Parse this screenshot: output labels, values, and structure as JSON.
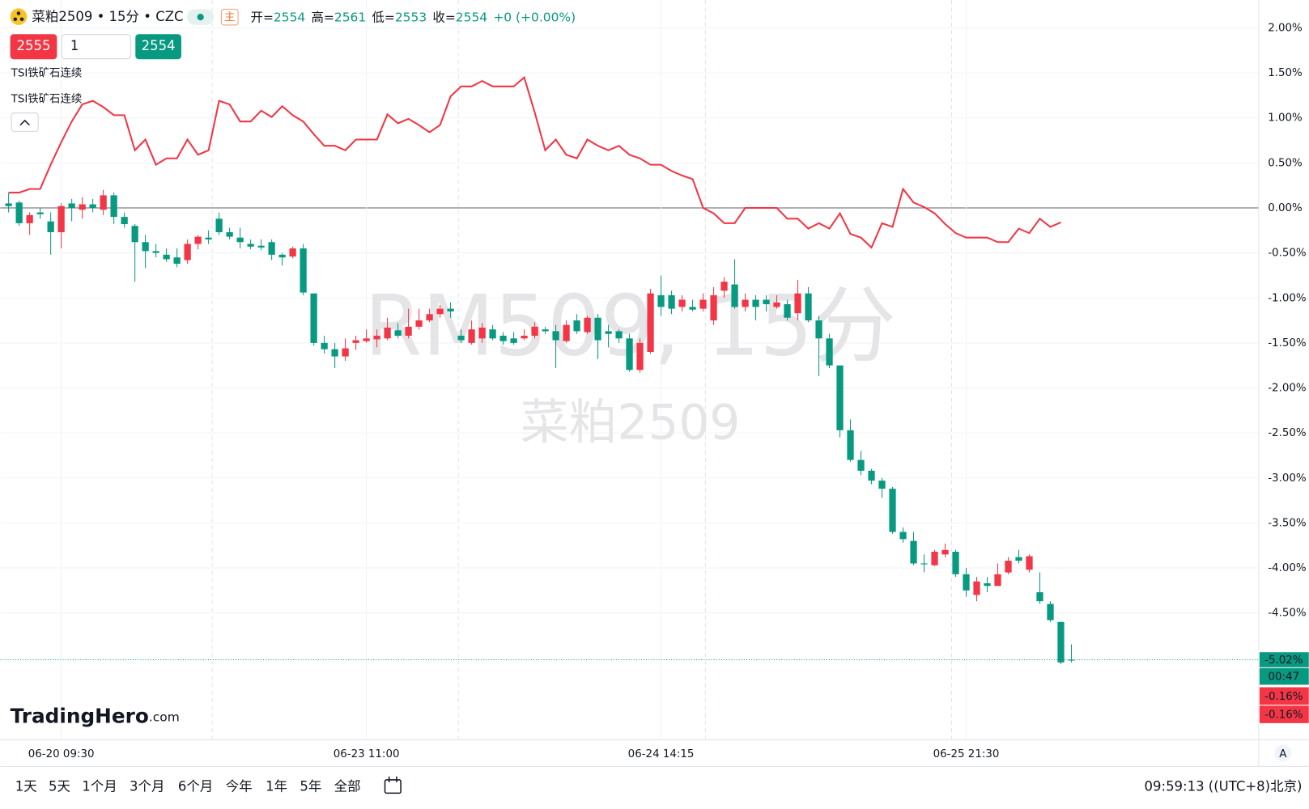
{
  "header": {
    "symbol": "菜粕2509 • 15分 • CZC",
    "main": "主",
    "ohlc": [
      {
        "label": "开=",
        "value": "2554"
      },
      {
        "label": "高=",
        "value": "2561"
      },
      {
        "label": "低=",
        "value": "2553"
      },
      {
        "label": "收=",
        "value": "2554"
      }
    ],
    "change": "+0 (+0.00%)"
  },
  "trade": {
    "sell": "2555",
    "qty": "1",
    "buy": "2554"
  },
  "watermark": {
    "line1": "RM509, 15分",
    "line2": "菜粕2509"
  },
  "logo": {
    "brand": "TradingHero",
    "domain": ".com"
  },
  "bottom": {
    "ranges": [
      "1天",
      "5天",
      "1个月",
      "3个月",
      "6个月",
      "今年",
      "1年",
      "5年",
      "全部"
    ],
    "clock": "09:59:13 ((UTC+8)北京)",
    "auto": "A"
  },
  "chart_data": {
    "type": "candlestick",
    "up_color": "#f23645",
    "down_color": "#089981",
    "ylim": [
      -5.9,
      2.31
    ],
    "yticks": [
      {
        "value": 2,
        "label": "2.00%"
      },
      {
        "value": 1.5,
        "label": "1.50%"
      },
      {
        "value": 1,
        "label": "1.00%"
      },
      {
        "value": 0.5,
        "label": "0.50%"
      },
      {
        "value": 0,
        "label": "0.00%"
      },
      {
        "value": -0.5,
        "label": "-0.50%"
      },
      {
        "value": -1,
        "label": "-1.00%"
      },
      {
        "value": -1.5,
        "label": "-1.50%"
      },
      {
        "value": -2,
        "label": "-2.00%"
      },
      {
        "value": -2.5,
        "label": "-2.50%"
      },
      {
        "value": -3,
        "label": "-3.00%"
      },
      {
        "value": -3.5,
        "label": "-3.50%"
      },
      {
        "value": -4,
        "label": "-4.00%"
      },
      {
        "value": -4.5,
        "label": "-4.50%"
      }
    ],
    "xlim": [
      -0.8,
      118.8
    ],
    "xticks": [
      {
        "value": 5,
        "label": "06-20 09:30"
      },
      {
        "value": 34,
        "label": "06-23 11:00"
      },
      {
        "value": 62,
        "label": "06-24 14:15"
      },
      {
        "value": 91,
        "label": "06-25 21:30"
      }
    ],
    "grid": true,
    "candles": [
      [
        0.05,
        0.17,
        -0.05,
        0.02
      ],
      [
        0.06,
        0.08,
        -0.2,
        -0.17
      ],
      [
        -0.17,
        -0.05,
        -0.3,
        -0.08
      ],
      [
        -0.05,
        0,
        -0.12,
        -0.07
      ],
      [
        -0.15,
        -0.05,
        -0.52,
        -0.27
      ],
      [
        -0.27,
        0.05,
        -0.45,
        0.02
      ],
      [
        0.05,
        0.1,
        -0.15,
        0
      ],
      [
        -0.02,
        0.12,
        -0.12,
        0.04
      ],
      [
        0.04,
        0.1,
        -0.05,
        0
      ],
      [
        -0.02,
        0.2,
        -0.08,
        0.14
      ],
      [
        0.14,
        0.17,
        -0.18,
        -0.1
      ],
      [
        -0.1,
        -0.05,
        -0.22,
        -0.18
      ],
      [
        -0.2,
        -0.18,
        -0.82,
        -0.38
      ],
      [
        -0.38,
        -0.3,
        -0.67,
        -0.48
      ],
      [
        -0.48,
        -0.4,
        -0.55,
        -0.5
      ],
      [
        -0.52,
        -0.45,
        -0.6,
        -0.57
      ],
      [
        -0.55,
        -0.45,
        -0.66,
        -0.62
      ],
      [
        -0.58,
        -0.35,
        -0.62,
        -0.4
      ],
      [
        -0.4,
        -0.3,
        -0.46,
        -0.32
      ],
      [
        -0.33,
        -0.25,
        -0.4,
        -0.35
      ],
      [
        -0.12,
        -0.05,
        -0.3,
        -0.27
      ],
      [
        -0.27,
        -0.22,
        -0.35,
        -0.32
      ],
      [
        -0.33,
        -0.22,
        -0.45,
        -0.38
      ],
      [
        -0.4,
        -0.35,
        -0.46,
        -0.43
      ],
      [
        -0.42,
        -0.35,
        -0.47,
        -0.44
      ],
      [
        -0.38,
        -0.35,
        -0.58,
        -0.52
      ],
      [
        -0.52,
        -0.5,
        -0.64,
        -0.55
      ],
      [
        -0.54,
        -0.43,
        -0.56,
        -0.45
      ],
      [
        -0.45,
        -0.4,
        -0.97,
        -0.94
      ],
      [
        -0.95,
        -0.95,
        -1.53,
        -1.5
      ],
      [
        -1.5,
        -1.42,
        -1.62,
        -1.57
      ],
      [
        -1.57,
        -1.5,
        -1.78,
        -1.65
      ],
      [
        -1.65,
        -1.45,
        -1.7,
        -1.56
      ],
      [
        -1.5,
        -1.42,
        -1.58,
        -1.47
      ],
      [
        -1.48,
        -1.35,
        -1.5,
        -1.45
      ],
      [
        -1.46,
        -1.35,
        -1.55,
        -1.42
      ],
      [
        -1.45,
        -1.22,
        -1.47,
        -1.33
      ],
      [
        -1.36,
        -1.28,
        -1.45,
        -1.42
      ],
      [
        -1.42,
        -1.12,
        -1.45,
        -1.32
      ],
      [
        -1.32,
        -1.12,
        -1.35,
        -1.25
      ],
      [
        -1.25,
        -1.12,
        -1.27,
        -1.18
      ],
      [
        -1.18,
        -1.08,
        -1.22,
        -1.12
      ],
      [
        -1.12,
        -1.05,
        -1.22,
        -1.15
      ],
      [
        -1.42,
        -1.35,
        -1.5,
        -1.47
      ],
      [
        -1.5,
        -1.25,
        -1.52,
        -1.35
      ],
      [
        -1.45,
        -1.28,
        -1.5,
        -1.33
      ],
      [
        -1.35,
        -1.3,
        -1.47,
        -1.45
      ],
      [
        -1.42,
        -1.38,
        -1.52,
        -1.48
      ],
      [
        -1.45,
        -1.38,
        -1.52,
        -1.5
      ],
      [
        -1.45,
        -1.35,
        -1.47,
        -1.42
      ],
      [
        -1.42,
        -1.27,
        -1.45,
        -1.32
      ],
      [
        -1.35,
        -1.32,
        -1.4,
        -1.37
      ],
      [
        -1.37,
        -1.3,
        -1.78,
        -1.47
      ],
      [
        -1.48,
        -1.25,
        -1.5,
        -1.3
      ],
      [
        -1.25,
        -1.18,
        -1.4,
        -1.37
      ],
      [
        -1.38,
        -1.2,
        -1.4,
        -1.22
      ],
      [
        -1.22,
        -1.18,
        -1.68,
        -1.47
      ],
      [
        -1.37,
        -1.3,
        -1.55,
        -1.4
      ],
      [
        -1.37,
        -1.35,
        -1.5,
        -1.45
      ],
      [
        -1.45,
        -1.4,
        -1.82,
        -1.8
      ],
      [
        -1.8,
        -1.45,
        -1.83,
        -1.5
      ],
      [
        -1.6,
        -0.9,
        -1.62,
        -0.95
      ],
      [
        -0.97,
        -0.75,
        -1.2,
        -1.1
      ],
      [
        -0.97,
        -0.92,
        -1.18,
        -1.12
      ],
      [
        -1.1,
        -0.97,
        -1.15,
        -1.02
      ],
      [
        -1.1,
        -1.02,
        -1.15,
        -1.13
      ],
      [
        -1.12,
        -0.95,
        -1.15,
        -1.02
      ],
      [
        -1.25,
        -0.88,
        -1.3,
        -0.97
      ],
      [
        -0.92,
        -0.77,
        -1,
        -0.82
      ],
      [
        -0.85,
        -0.57,
        -1.12,
        -1.1
      ],
      [
        -1.1,
        -0.95,
        -1.15,
        -1.02
      ],
      [
        -1.02,
        -0.97,
        -1.25,
        -1.1
      ],
      [
        -1.02,
        -0.97,
        -1.15,
        -1.07
      ],
      [
        -1.1,
        -0.97,
        -1.12,
        -1.05
      ],
      [
        -1.07,
        -1.02,
        -1.25,
        -1.22
      ],
      [
        -1.17,
        -0.8,
        -1.25,
        -0.95
      ],
      [
        -0.95,
        -0.88,
        -1.27,
        -1.25
      ],
      [
        -1.25,
        -1.2,
        -1.87,
        -1.45
      ],
      [
        -1.45,
        -1.4,
        -1.78,
        -1.75
      ],
      [
        -1.75,
        -1.75,
        -2.55,
        -2.47
      ],
      [
        -2.47,
        -2.35,
        -2.82,
        -2.8
      ],
      [
        -2.8,
        -2.7,
        -2.97,
        -2.92
      ],
      [
        -2.92,
        -2.9,
        -3.07,
        -3.03
      ],
      [
        -3.03,
        -3,
        -3.22,
        -3.12
      ],
      [
        -3.12,
        -3.1,
        -3.62,
        -3.6
      ],
      [
        -3.6,
        -3.55,
        -3.72,
        -3.68
      ],
      [
        -3.7,
        -3.6,
        -3.97,
        -3.95
      ],
      [
        -3.95,
        -3.85,
        -4.05,
        -3.96
      ],
      [
        -3.97,
        -3.8,
        -3.98,
        -3.82
      ],
      [
        -3.85,
        -3.73,
        -3.88,
        -3.8
      ],
      [
        -3.82,
        -3.8,
        -4.1,
        -4.07
      ],
      [
        -4.07,
        -4,
        -4.32,
        -4.25
      ],
      [
        -4.3,
        -4.1,
        -4.37,
        -4.15
      ],
      [
        -4.17,
        -4.1,
        -4.27,
        -4.2
      ],
      [
        -4.2,
        -3.95,
        -4.2,
        -4.07
      ],
      [
        -4.05,
        -3.88,
        -4.07,
        -3.92
      ],
      [
        -3.88,
        -3.8,
        -3.95,
        -3.92
      ],
      [
        -4.02,
        -3.85,
        -4.05,
        -3.87
      ],
      [
        -4.27,
        -4.05,
        -4.4,
        -4.37
      ],
      [
        -4.4,
        -4.37,
        -4.6,
        -4.58
      ],
      [
        -4.6,
        -4.6,
        -5.07,
        -5.05
      ],
      [
        -5.02,
        -4.85,
        -5.05,
        -5.02
      ]
    ],
    "series": [
      {
        "name": "TSI铁矿石连续",
        "color": "#f23645",
        "values": [
          0.17,
          0.17,
          0.21,
          0.21,
          0.48,
          0.73,
          0.96,
          1.15,
          1.19,
          1.12,
          1.03,
          1.03,
          0.64,
          0.76,
          0.48,
          0.55,
          0.55,
          0.76,
          0.59,
          0.64,
          1.19,
          1.15,
          0.96,
          0.96,
          1.08,
          1.01,
          1.13,
          1.03,
          0.96,
          0.82,
          0.69,
          0.69,
          0.64,
          0.76,
          0.76,
          0.76,
          1.04,
          0.94,
          0.99,
          0.92,
          0.84,
          0.92,
          1.24,
          1.35,
          1.35,
          1.41,
          1.35,
          1.35,
          1.35,
          1.45,
          1.06,
          0.64,
          0.76,
          0.59,
          0.55,
          0.76,
          0.69,
          0.64,
          0.69,
          0.59,
          0.55,
          0.48,
          0.48,
          0.41,
          0.36,
          0.32,
          0,
          -0.06,
          -0.17,
          -0.17,
          0,
          0,
          0,
          0,
          -0.12,
          -0.12,
          -0.23,
          -0.17,
          -0.23,
          -0.06,
          -0.29,
          -0.33,
          -0.44,
          -0.17,
          -0.21,
          0.21,
          0.06,
          0.01,
          -0.06,
          -0.18,
          -0.28,
          -0.33,
          -0.33,
          -0.33,
          -0.38,
          -0.38,
          -0.23,
          -0.28,
          -0.12,
          -0.21,
          -0.16
        ]
      }
    ],
    "study_labels": [
      "TSI铁矿石连续"
    ],
    "last_price": {
      "value": -5.02,
      "label": "-5.02%"
    },
    "countdown": "00:47",
    "series_labels": [
      {
        "value": -0.16,
        "label": "-0.16%"
      },
      {
        "value": -0.16,
        "label": "-0.16%"
      }
    ]
  }
}
